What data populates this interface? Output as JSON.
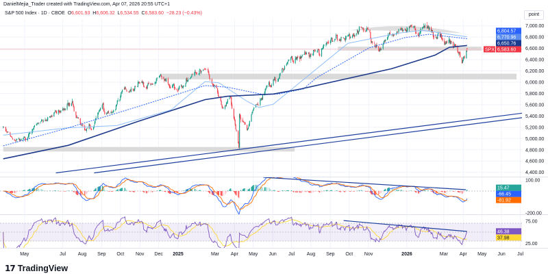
{
  "header": {
    "attribution": "DanielMejia_Trader created with TradingView.com, Apr 07, 2026 20:55 UTC+1",
    "symbol": "S&P 500 Index · 1D · CBOE",
    "o_label": "O",
    "open": "6,601.93",
    "h_label": "H",
    "high": "6,606.32",
    "l_label": "L",
    "low": "6,534.55",
    "c_label": "C",
    "close": "6,583.60",
    "change": "−28.23 (−0.43%)"
  },
  "axis_unit": "point",
  "branding": {
    "logo_text": "TradingView"
  },
  "colors": {
    "up": "#089981",
    "down": "#f23645",
    "ma_fast": "#90bff9",
    "ma_mid": "#2962ff",
    "ma_slow": "#1e3a8a",
    "drawing": "#1e3f9e",
    "zone": "#d6d6d6",
    "macd": "#2962ff",
    "signal": "#ff6d00",
    "hist_up": "#26a69a",
    "hist_up_weak": "#b2dfdb",
    "hist_down": "#ff5252",
    "hist_down_weak": "#ffcdd2",
    "rsi": "#7e57c2",
    "rsi_ma": "#fdd835",
    "rsi_band": "#7e57c2",
    "price_tag": "#f23645"
  },
  "chart_data": {
    "type": "candlestick",
    "symbol_tag": "SPX",
    "last_bar": {
      "date": "2026-04-07",
      "open": 6601.93,
      "high": 6606.32,
      "low": 6534.55,
      "close": 6583.6
    },
    "price_waypoints": [
      [
        "2024-03-28",
        5210
      ],
      [
        "2024-04-19",
        4990
      ],
      [
        "2024-05-31",
        5310
      ],
      [
        "2024-07-16",
        5660
      ],
      [
        "2024-08-05",
        5150
      ],
      [
        "2024-09-03",
        5630
      ],
      [
        "2024-09-06",
        5430
      ],
      [
        "2024-10-01",
        5750
      ],
      [
        "2024-11-08",
        5910
      ],
      [
        "2024-12-06",
        6080
      ],
      [
        "2024-12-20",
        5900
      ],
      [
        "2025-01-17",
        6050
      ],
      [
        "2025-02-19",
        6140
      ],
      [
        "2025-03-13",
        5540
      ],
      [
        "2025-03-25",
        5750
      ],
      [
        "2025-04-08",
        4840
      ],
      [
        "2025-04-09",
        5430
      ],
      [
        "2025-04-21",
        5150
      ],
      [
        "2025-05-02",
        5550
      ],
      [
        "2025-05-23",
        5940
      ],
      [
        "2025-06-18",
        6220
      ],
      [
        "2025-07-10",
        6450
      ],
      [
        "2025-07-28",
        6520
      ],
      [
        "2025-08-20",
        6610
      ],
      [
        "2025-08-29",
        6690
      ],
      [
        "2025-09-22",
        6790
      ],
      [
        "2025-10-08",
        6830
      ],
      [
        "2025-10-28",
        6910
      ],
      [
        "2025-11-20",
        6570
      ],
      [
        "2025-12-05",
        6850
      ],
      [
        "2026-01-02",
        6950
      ],
      [
        "2026-01-20",
        6830
      ],
      [
        "2026-01-28",
        7000
      ],
      [
        "2026-02-10",
        6930
      ],
      [
        "2026-02-20",
        6890
      ],
      [
        "2026-03-06",
        6700
      ],
      [
        "2026-03-17",
        6630
      ],
      [
        "2026-03-30",
        6340
      ],
      [
        "2026-04-07",
        6583.6
      ]
    ],
    "moving_averages": [
      {
        "color_key": "ma_fast",
        "dashed": false,
        "last": "6,804.57",
        "tag_color": "#2962ff",
        "values": [
          [
            "2024-03-28",
            5060
          ],
          [
            "2024-07-10",
            5190
          ],
          [
            "2024-09-25",
            5230
          ],
          [
            "2024-12-21",
            5510
          ],
          [
            "2025-02-13",
            6010
          ],
          [
            "2025-03-07",
            5990
          ],
          [
            "2025-04-21",
            5660
          ],
          [
            "2025-05-10",
            5550
          ],
          [
            "2025-06-02",
            5610
          ],
          [
            "2025-07-05",
            5910
          ],
          [
            "2025-09-29",
            6690
          ],
          [
            "2025-12-19",
            6870
          ],
          [
            "2026-01-26",
            6920
          ],
          [
            "2026-04-07",
            6804.57
          ]
        ]
      },
      {
        "color_key": "ma_mid",
        "dashed": true,
        "last": "6,770.96",
        "tag_color": "#5b8def",
        "values": [
          [
            "2024-03-28",
            4870
          ],
          [
            "2024-07-10",
            5190
          ],
          [
            "2024-10-30",
            5570
          ],
          [
            "2025-02-13",
            5940
          ],
          [
            "2025-03-21",
            5910
          ],
          [
            "2025-05-17",
            5780
          ],
          [
            "2025-06-10",
            5790
          ],
          [
            "2025-07-20",
            5880
          ],
          [
            "2025-08-10",
            6080
          ],
          [
            "2025-11-02",
            6610
          ],
          [
            "2025-12-29",
            6790
          ],
          [
            "2026-02-05",
            6850
          ],
          [
            "2026-04-07",
            6770.96
          ]
        ]
      },
      {
        "color_key": "ma_slow",
        "dashed": false,
        "last": "6,650.76",
        "tag_color": "#1a3a8f",
        "values": [
          [
            "2024-03-28",
            4640
          ],
          [
            "2024-07-10",
            4880
          ],
          [
            "2024-10-28",
            5300
          ],
          [
            "2025-02-13",
            5690
          ],
          [
            "2025-03-21",
            5750
          ],
          [
            "2025-06-02",
            5790
          ],
          [
            "2025-07-16",
            5880
          ],
          [
            "2025-12-08",
            6240
          ],
          [
            "2026-02-15",
            6480
          ],
          [
            "2026-03-10",
            6620
          ],
          [
            "2026-04-07",
            6650.76
          ]
        ]
      }
    ],
    "drawings": {
      "trendlines": [
        [
          [
            "2024-06-20",
            4390
          ],
          [
            "2026-07-04",
            5450
          ]
        ],
        [
          [
            "2024-08-20",
            4390
          ],
          [
            "2026-07-04",
            5370
          ]
        ]
      ],
      "zones": [
        {
          "from": "2024-12-04",
          "to": "2026-06-25",
          "low": 6050,
          "high": 6150
        },
        {
          "from": "2024-03-28",
          "to": "2025-07-06",
          "low": 4770,
          "high": 4850
        },
        {
          "from": "2025-09-13",
          "to": "2026-04-30",
          "low": 6560,
          "high": 6630
        }
      ],
      "arc": {
        "from": "2025-10-03",
        "to": "2026-03-30",
        "left": 6920,
        "right": 6870,
        "peak": 7095,
        "base": 6920
      }
    },
    "price_axis": {
      "min": 4400,
      "max": 7000,
      "ticks": [
        "7,000.00",
        "6,800.00",
        "6,600.00",
        "6,400.00",
        "6,200.00",
        "6,000.00",
        "5,800.00",
        "5,600.00",
        "5,400.00",
        "5,200.00",
        "5,000.00",
        "4,800.00",
        "4,600.00",
        "4,400.00"
      ]
    },
    "x_ticks": [
      {
        "label": "May",
        "date": "2024-05-01"
      },
      {
        "label": "Jul",
        "date": "2024-07-01"
      },
      {
        "label": "Aug",
        "date": "2024-08-01"
      },
      {
        "label": "Sep",
        "date": "2024-09-01"
      },
      {
        "label": "Oct",
        "date": "2024-10-01"
      },
      {
        "label": "Nov",
        "date": "2024-11-01"
      },
      {
        "label": "Dec",
        "date": "2024-12-01"
      },
      {
        "label": "2025",
        "date": "2025-01-01",
        "bold": true
      },
      {
        "label": "Mar",
        "date": "2025-03-01"
      },
      {
        "label": "Apr",
        "date": "2025-04-01"
      },
      {
        "label": "May",
        "date": "2025-05-01"
      },
      {
        "label": "Jun",
        "date": "2025-06-01"
      },
      {
        "label": "Jul",
        "date": "2025-07-01"
      },
      {
        "label": "Aug",
        "date": "2025-08-01"
      },
      {
        "label": "Sep",
        "date": "2025-09-01"
      },
      {
        "label": "Oct",
        "date": "2025-10-01"
      },
      {
        "label": "Nov",
        "date": "2025-11-01"
      },
      {
        "label": "2026",
        "date": "2026-01-01",
        "bold": true
      },
      {
        "label": "Mar",
        "date": "2026-03-01"
      },
      {
        "label": "Apr",
        "date": "2026-04-01"
      },
      {
        "label": "May",
        "date": "2026-05-01"
      },
      {
        "label": "Jun",
        "date": "2026-06-01"
      },
      {
        "label": "Jul",
        "date": "2026-07-01"
      }
    ],
    "macd": {
      "axis_labels": [
        {
          "value": 100,
          "text": "100.00"
        },
        {
          "value": -200,
          "text": "-200.00"
        }
      ],
      "histogram": "15.47",
      "macd": "-66.45",
      "signal": "-81.92",
      "histogram_value": 15.47,
      "macd_value": -66.45,
      "signal_value": -81.92,
      "trendline": [
        [
          "2025-05-17",
          125
        ],
        [
          "2026-04-05",
          12.5
        ]
      ]
    },
    "rsi": {
      "axis_labels": [
        {
          "value": 75,
          "text": "75.00"
        },
        {
          "value": 25,
          "text": "25.00"
        }
      ],
      "rsi": "46.38",
      "rsi_ma": "37.98",
      "rsi_value": 46.38,
      "rsi_ma_value": 37.98,
      "band": [
        30,
        70
      ],
      "trendline": [
        [
          "2025-09-22",
          76
        ],
        [
          "2026-04-07",
          51.5
        ]
      ]
    }
  }
}
